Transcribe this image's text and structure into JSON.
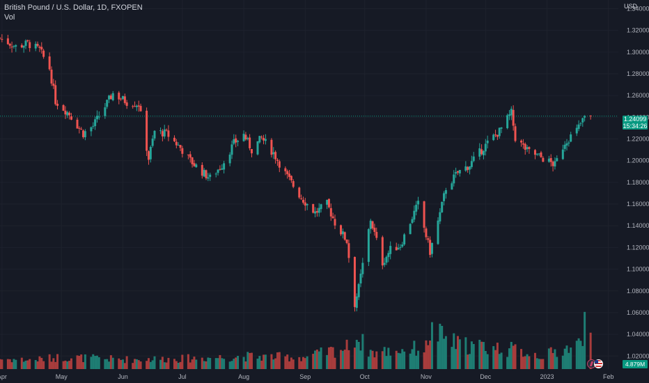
{
  "legend": {
    "title": "British Pound / U.S. Dollar, 1D, FXOPEN",
    "indicator": "Vol"
  },
  "price_axis": {
    "currency": "USD",
    "last_price": "1.24099",
    "countdown": "15:34:26",
    "last_volume": "4.879M"
  },
  "colors": {
    "background": "#161a25",
    "grid": "#1e222d",
    "up": "#26a69a",
    "down": "#ef5350",
    "up_volume": "#1e7d73",
    "down_volume": "#a83c3c",
    "axis_text": "#b2b5be",
    "last_price_line": "#089981"
  },
  "icons": [
    "lightning-icon",
    "us-flag-icon"
  ],
  "chart_data": {
    "type": "candlestick",
    "title": "British Pound / U.S. Dollar, 1D, FXOPEN",
    "symbol": "GBPUSD",
    "interval": "1D",
    "y_ticks": [
      1.02,
      1.04,
      1.06,
      1.08,
      1.1,
      1.12,
      1.14,
      1.16,
      1.18,
      1.2,
      1.22,
      1.24,
      1.26,
      1.28,
      1.3,
      1.32,
      1.34
    ],
    "y_tick_labels": [
      "1.02000",
      "1.04000",
      "1.06000",
      "1.08000",
      "1.10000",
      "1.12000",
      "1.14000",
      "1.16000",
      "1.18000",
      "1.20000",
      "1.22000",
      "1.24000",
      "1.26000",
      "1.28000",
      "1.30000",
      "1.32000",
      "1.34000"
    ],
    "ylim": [
      1.008,
      1.348
    ],
    "x_ticks": [
      "Apr",
      "May",
      "Jun",
      "Jul",
      "Aug",
      "Sep",
      "Oct",
      "Nov",
      "Dec",
      "2023",
      "Feb"
    ],
    "x_tick_dates": [
      "2022-04-01",
      "2022-05-01",
      "2022-06-01",
      "2022-07-01",
      "2022-08-01",
      "2022-09-01",
      "2022-10-01",
      "2022-11-01",
      "2022-12-01",
      "2023-01-01",
      "2023-02-01"
    ],
    "xlim": [
      "2022-03-31",
      "2023-02-06"
    ],
    "grid": true,
    "last_price": 1.24099,
    "close_path": [
      [
        "2022-03-31",
        1.313
      ],
      [
        "2022-04-08",
        1.305
      ],
      [
        "2022-04-14",
        1.308
      ],
      [
        "2022-04-20",
        1.302
      ],
      [
        "2022-04-25",
        1.285
      ],
      [
        "2022-04-28",
        1.255
      ],
      [
        "2022-05-05",
        1.243
      ],
      [
        "2022-05-12",
        1.225
      ],
      [
        "2022-05-17",
        1.232
      ],
      [
        "2022-05-23",
        1.25
      ],
      [
        "2022-05-27",
        1.262
      ],
      [
        "2022-06-03",
        1.254
      ],
      [
        "2022-06-09",
        1.252
      ],
      [
        "2022-06-14",
        1.202
      ],
      [
        "2022-06-17",
        1.227
      ],
      [
        "2022-06-23",
        1.225
      ],
      [
        "2022-06-30",
        1.212
      ],
      [
        "2022-07-05",
        1.2
      ],
      [
        "2022-07-12",
        1.188
      ],
      [
        "2022-07-15",
        1.184
      ],
      [
        "2022-07-21",
        1.196
      ],
      [
        "2022-07-27",
        1.216
      ],
      [
        "2022-08-01",
        1.224
      ],
      [
        "2022-08-05",
        1.21
      ],
      [
        "2022-08-10",
        1.221
      ],
      [
        "2022-08-16",
        1.207
      ],
      [
        "2022-08-23",
        1.185
      ],
      [
        "2022-08-30",
        1.166
      ],
      [
        "2022-09-06",
        1.152
      ],
      [
        "2022-09-12",
        1.16
      ],
      [
        "2022-09-16",
        1.143
      ],
      [
        "2022-09-22",
        1.126
      ],
      [
        "2022-09-26",
        1.068
      ],
      [
        "2022-09-28",
        1.083
      ],
      [
        "2022-10-04",
        1.146
      ],
      [
        "2022-10-10",
        1.106
      ],
      [
        "2022-10-14",
        1.118
      ],
      [
        "2022-10-19",
        1.122
      ],
      [
        "2022-10-25",
        1.148
      ],
      [
        "2022-10-28",
        1.16
      ],
      [
        "2022-11-03",
        1.116
      ],
      [
        "2022-11-08",
        1.151
      ],
      [
        "2022-11-11",
        1.175
      ],
      [
        "2022-11-17",
        1.189
      ],
      [
        "2022-11-23",
        1.196
      ],
      [
        "2022-11-30",
        1.212
      ],
      [
        "2022-12-05",
        1.222
      ],
      [
        "2022-12-08",
        1.227
      ],
      [
        "2022-12-14",
        1.244
      ],
      [
        "2022-12-16",
        1.221
      ],
      [
        "2022-12-22",
        1.209
      ],
      [
        "2022-12-29",
        1.203
      ],
      [
        "2023-01-05",
        1.196
      ],
      [
        "2023-01-10",
        1.217
      ],
      [
        "2023-01-16",
        1.228
      ],
      [
        "2023-01-20",
        1.24
      ],
      [
        "2023-01-23",
        1.241
      ]
    ],
    "volume_ylim": [
      0,
      14000000
    ],
    "volume_last": 4879000,
    "volume_profile": [
      [
        "2022-03-31",
        1400000
      ],
      [
        "2022-04-15",
        1200000
      ],
      [
        "2022-05-01",
        1600000
      ],
      [
        "2022-06-01",
        1300000
      ],
      [
        "2022-07-01",
        1400000
      ],
      [
        "2022-08-01",
        1700000
      ],
      [
        "2022-09-01",
        1600000
      ],
      [
        "2022-09-22",
        2900000
      ],
      [
        "2022-09-26",
        4400000
      ],
      [
        "2022-10-05",
        2200000
      ],
      [
        "2022-11-01",
        2900000
      ],
      [
        "2022-11-03",
        5100000
      ],
      [
        "2022-11-17",
        3300000
      ],
      [
        "2022-12-01",
        3000000
      ],
      [
        "2022-12-15",
        2600000
      ],
      [
        "2022-12-30",
        1800000
      ],
      [
        "2023-01-10",
        2700000
      ],
      [
        "2023-01-19",
        3500000
      ],
      [
        "2023-01-20",
        12500000
      ],
      [
        "2023-01-23",
        4879000
      ]
    ]
  }
}
